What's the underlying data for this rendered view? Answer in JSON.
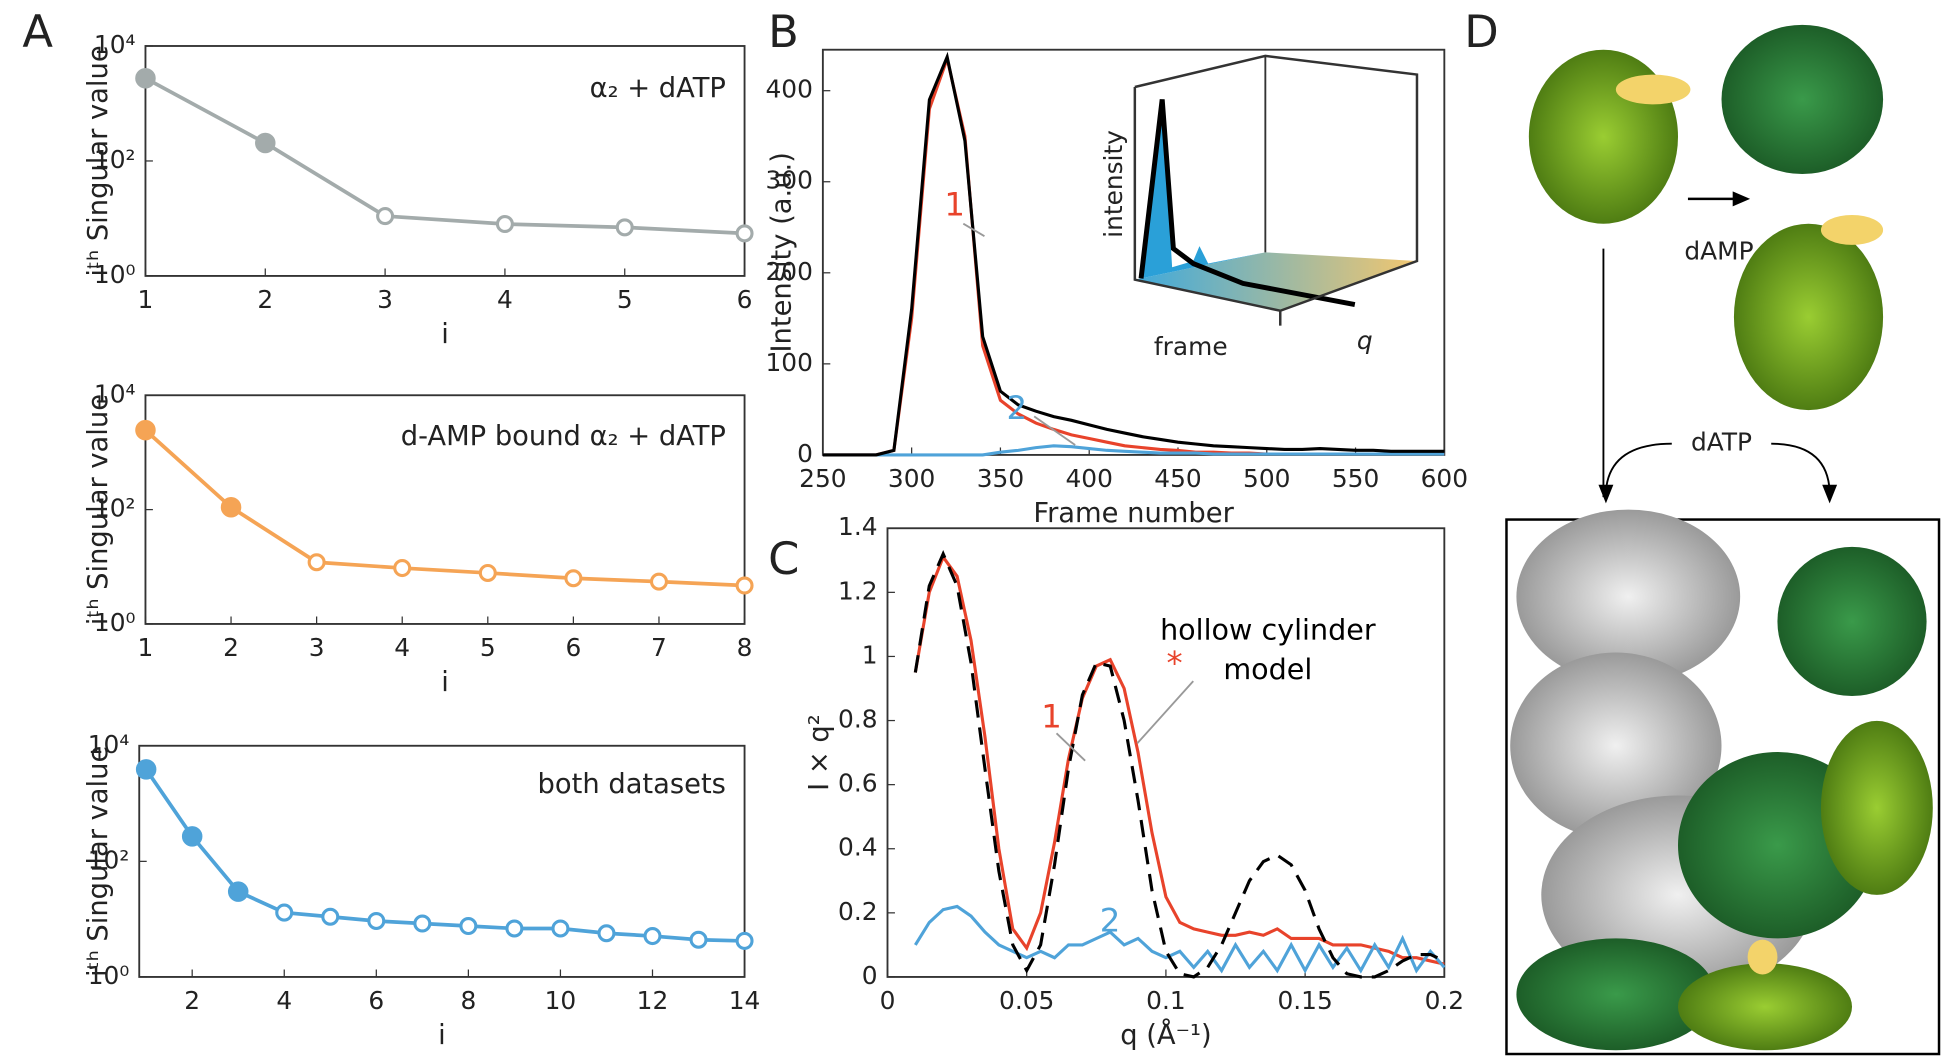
{
  "panel_labels": [
    "A",
    "B",
    "C",
    "D"
  ],
  "chart_data": [
    {
      "type": "line",
      "ylog": true,
      "color": "#a3abab",
      "filled_points": 2,
      "annotation": "α₂ + dATP",
      "ylabel": "iᵗʰ Singular value",
      "xlabel": "i",
      "x": [
        1,
        2,
        3,
        4,
        5,
        6
      ],
      "values": [
        2750,
        205,
        11,
        8,
        7,
        5.5
      ],
      "xlim": [
        1,
        6
      ],
      "xticks": [
        1,
        2,
        3,
        4,
        5,
        6
      ],
      "ylim": [
        1,
        10000
      ],
      "yticks": [
        {
          "value": 1,
          "label": "10⁰"
        },
        {
          "value": 100,
          "label": "10²"
        },
        {
          "value": 10000,
          "label": "10⁴"
        }
      ]
    },
    {
      "type": "line",
      "ylog": true,
      "color": "#f5a455",
      "filled_points": 2,
      "annotation": "d-AMP bound α₂ + dATP",
      "ylabel": "iᵗʰ Singular value",
      "xlabel": "i",
      "x": [
        1,
        2,
        3,
        4,
        5,
        6,
        7,
        8
      ],
      "values": [
        2450,
        110,
        12,
        9.5,
        7.8,
        6.3,
        5.5,
        4.7
      ],
      "xlim": [
        1,
        8
      ],
      "xticks": [
        1,
        2,
        3,
        4,
        5,
        6,
        7,
        8
      ],
      "ylim": [
        1,
        10000
      ],
      "yticks": [
        {
          "value": 1,
          "label": "10⁰"
        },
        {
          "value": 100,
          "label": "10²"
        },
        {
          "value": 10000,
          "label": "10⁴"
        }
      ]
    },
    {
      "type": "line",
      "ylog": true,
      "color": "#4fa3d9",
      "filled_points": 3,
      "annotation": "both datasets",
      "ylabel": "iᵗʰ Singular value",
      "xlabel": "i",
      "x": [
        1,
        2,
        3,
        4,
        5,
        6,
        7,
        8,
        9,
        10,
        11,
        12,
        13,
        14
      ],
      "values": [
        3900,
        270,
        30,
        13,
        11,
        9.3,
        8.4,
        7.6,
        6.9,
        6.9,
        5.7,
        5.1,
        4.4,
        4.2
      ],
      "xlim": [
        0.85,
        14
      ],
      "xticks": [
        2,
        4,
        6,
        8,
        10,
        12,
        14
      ],
      "ylim": [
        1,
        10000
      ],
      "yticks": [
        {
          "value": 1,
          "label": "10⁰"
        },
        {
          "value": 100,
          "label": "10²"
        },
        {
          "value": 10000,
          "label": "10⁴"
        }
      ]
    },
    {
      "type": "line",
      "ylabel": "Intensity (a.u.)",
      "xlabel": "Frame number",
      "x": [
        250,
        260,
        270,
        280,
        290,
        300,
        310,
        320,
        330,
        340,
        350,
        360,
        370,
        380,
        390,
        400,
        410,
        420,
        430,
        440,
        450,
        460,
        470,
        480,
        490,
        500,
        510,
        520,
        530,
        540,
        550,
        560,
        570,
        580,
        590,
        600
      ],
      "series": [
        {
          "color": "#e8432b",
          "values": [
            0,
            0,
            0,
            0,
            5,
            150,
            380,
            435,
            350,
            120,
            60,
            45,
            35,
            28,
            22,
            18,
            14,
            10,
            8,
            6,
            5,
            3,
            3,
            2,
            2,
            1,
            1,
            1,
            1,
            1,
            1,
            1,
            1,
            1,
            1,
            1
          ]
        },
        {
          "color": "#4fa3d9",
          "values": [
            0,
            0,
            0,
            0,
            0,
            0,
            0,
            0,
            0,
            0,
            3,
            5,
            8,
            10,
            9,
            7,
            5,
            4,
            3,
            2,
            2,
            2,
            1,
            1,
            1,
            1,
            1,
            1,
            1,
            1,
            1,
            1,
            1,
            1,
            1,
            1
          ]
        },
        {
          "color": "#000000",
          "values": [
            0,
            0,
            0,
            0,
            5,
            160,
            390,
            437,
            345,
            130,
            70,
            55,
            48,
            42,
            38,
            33,
            28,
            24,
            20,
            17,
            14,
            12,
            10,
            9,
            8,
            7,
            6,
            6,
            7,
            6,
            5,
            5,
            4,
            4,
            4,
            4
          ]
        }
      ],
      "xlim": [
        250,
        600
      ],
      "xticks": [
        250,
        300,
        350,
        400,
        450,
        500,
        550,
        600
      ],
      "ylim": [
        0,
        445
      ],
      "yticks": [
        0,
        100,
        200,
        300,
        400
      ],
      "annotations": [
        {
          "text": "1",
          "color": "#e8432b"
        },
        {
          "text": "2",
          "color": "#4fa3d9"
        }
      ],
      "inset_labels": [
        "intensity",
        "frame",
        "q"
      ]
    },
    {
      "type": "line",
      "ylabel": "I × q²",
      "xlabel": "q (Å⁻¹)",
      "x": [
        0.01,
        0.015,
        0.02,
        0.025,
        0.03,
        0.035,
        0.04,
        0.045,
        0.05,
        0.055,
        0.06,
        0.065,
        0.07,
        0.075,
        0.08,
        0.085,
        0.09,
        0.095,
        0.1,
        0.105,
        0.11,
        0.115,
        0.12,
        0.125,
        0.13,
        0.135,
        0.14,
        0.145,
        0.15,
        0.155,
        0.16,
        0.165,
        0.17,
        0.175,
        0.18,
        0.185,
        0.19,
        0.195,
        0.2
      ],
      "series": [
        {
          "color": "#e8432b",
          "values": [
            0.95,
            1.2,
            1.31,
            1.25,
            1.05,
            0.75,
            0.4,
            0.15,
            0.09,
            0.2,
            0.42,
            0.68,
            0.87,
            0.97,
            0.99,
            0.9,
            0.7,
            0.45,
            0.25,
            0.17,
            0.15,
            0.14,
            0.13,
            0.13,
            0.14,
            0.13,
            0.15,
            0.12,
            0.12,
            0.12,
            0.1,
            0.1,
            0.1,
            0.09,
            0.08,
            0.06,
            0.06,
            0.05,
            0.04
          ]
        },
        {
          "color": "#4fa3d9",
          "values": [
            0.1,
            0.17,
            0.21,
            0.22,
            0.19,
            0.14,
            0.1,
            0.08,
            0.06,
            0.08,
            0.06,
            0.1,
            0.1,
            0.12,
            0.14,
            0.1,
            0.12,
            0.08,
            0.06,
            0.08,
            0.03,
            0.08,
            0.02,
            0.1,
            0.03,
            0.08,
            0.02,
            0.1,
            0.02,
            0.1,
            0.03,
            0.09,
            0.02,
            0.1,
            0.03,
            0.12,
            0.02,
            0.08,
            0.03
          ]
        },
        {
          "color": "#000000",
          "dash": true,
          "values": [
            0.95,
            1.22,
            1.32,
            1.22,
            0.98,
            0.65,
            0.33,
            0.1,
            0.02,
            0.1,
            0.35,
            0.65,
            0.88,
            0.98,
            0.97,
            0.8,
            0.55,
            0.27,
            0.08,
            0.01,
            0,
            0.03,
            0.1,
            0.2,
            0.3,
            0.36,
            0.38,
            0.35,
            0.27,
            0.15,
            0.06,
            0.01,
            0,
            0,
            0.02,
            0.05,
            0.07,
            0.07,
            0.05
          ]
        }
      ],
      "xlim": [
        0,
        0.2
      ],
      "xticks": [
        0,
        0.05,
        0.1,
        0.15,
        0.2
      ],
      "ylim": [
        0,
        1.4
      ],
      "yticks": [
        0,
        0.2,
        0.4,
        0.6,
        0.8,
        1,
        1.2,
        1.4
      ],
      "annotations": [
        {
          "text": "*",
          "color": "#e8432b"
        },
        {
          "text": "1",
          "color": "#e8432b"
        },
        {
          "text": "2",
          "color": "#4fa3d9"
        },
        {
          "text": "hollow cylinder",
          "color": "#000000"
        },
        {
          "text": "model",
          "color": "#000000"
        }
      ]
    }
  ],
  "panel_d": {
    "labels": [
      "dAMP",
      "dATP"
    ]
  }
}
